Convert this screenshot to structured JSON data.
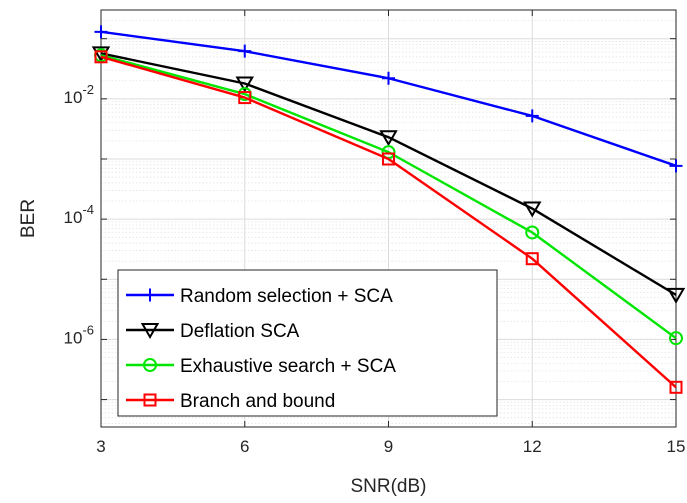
{
  "chart_data": {
    "type": "line",
    "x": [
      3,
      6,
      9,
      12,
      15
    ],
    "xlabel": "SNR(dB)",
    "ylabel": "BER",
    "xlim": [
      3,
      15
    ],
    "ylim": [
      3.5e-08,
      0.3
    ],
    "yscale": "log",
    "xticks": [
      "3",
      "6",
      "9",
      "12",
      "15"
    ],
    "yticks": [
      {
        "base": "10",
        "exp": "-2",
        "value": 0.01
      },
      {
        "base": "10",
        "exp": "-4",
        "value": 0.0001
      },
      {
        "base": "10",
        "exp": "-6",
        "value": 1e-06
      }
    ],
    "grid": true,
    "legend_position": "bottom-left",
    "series": [
      {
        "name": "Random selection + SCA",
        "color": "#0000ff",
        "marker": "plus",
        "values": [
          0.13,
          0.062,
          0.022,
          0.0052,
          0.00077
        ]
      },
      {
        "name": "Deflation SCA",
        "color": "#000000",
        "marker": "triangle-down",
        "values": [
          0.057,
          0.018,
          0.0023,
          0.00015,
          5.5e-06
        ]
      },
      {
        "name": "Exhaustive search + SCA",
        "color": "#00e600",
        "marker": "circle",
        "values": [
          0.053,
          0.012,
          0.0013,
          6e-05,
          1.05e-06
        ]
      },
      {
        "name": "Branch and bound",
        "color": "#ff0000",
        "marker": "square",
        "values": [
          0.05,
          0.0105,
          0.001,
          2.2e-05,
          1.6e-07
        ]
      }
    ]
  }
}
